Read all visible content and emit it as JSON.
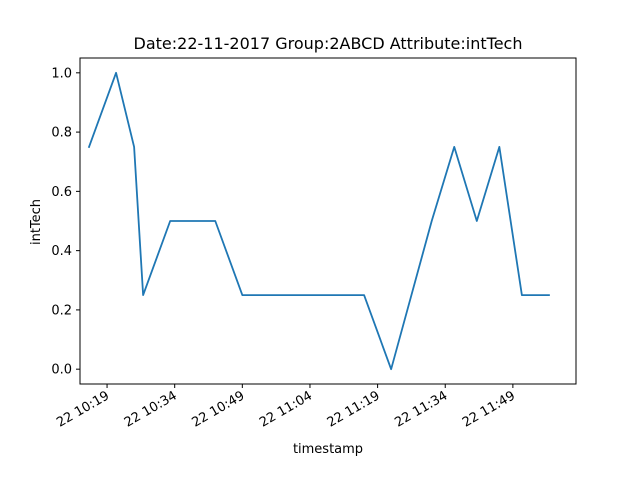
{
  "chart_data": {
    "type": "line",
    "title": "Date:22-11-2017  Group:2ABCD Attribute:intTech",
    "xlabel": "timestamp",
    "ylabel": "intTech",
    "xlim": [
      "2017-11-22 10:13",
      "2017-11-22 12:03"
    ],
    "ylim": [
      -0.05,
      1.05
    ],
    "x_ticks": [
      {
        "t": "2017-11-22 10:19",
        "label": "22 10:19"
      },
      {
        "t": "2017-11-22 10:34",
        "label": "22 10:34"
      },
      {
        "t": "2017-11-22 10:49",
        "label": "22 10:49"
      },
      {
        "t": "2017-11-22 11:04",
        "label": "22 11:04"
      },
      {
        "t": "2017-11-22 11:19",
        "label": "22 11:19"
      },
      {
        "t": "2017-11-22 11:34",
        "label": "22 11:34"
      },
      {
        "t": "2017-11-22 11:49",
        "label": "22 11:49"
      }
    ],
    "y_ticks": [
      {
        "v": 0.0,
        "label": "0.0"
      },
      {
        "v": 0.2,
        "label": "0.2"
      },
      {
        "v": 0.4,
        "label": "0.4"
      },
      {
        "v": 0.6,
        "label": "0.6"
      },
      {
        "v": 0.8,
        "label": "0.8"
      },
      {
        "v": 1.0,
        "label": "1.0"
      }
    ],
    "grid": false,
    "line_color": "#1f77b4",
    "series": [
      {
        "x": [
          "2017-11-22 10:15",
          "2017-11-22 10:21",
          "2017-11-22 10:25",
          "2017-11-22 10:27",
          "2017-11-22 10:33",
          "2017-11-22 10:43",
          "2017-11-22 10:49",
          "2017-11-22 11:09",
          "2017-11-22 11:16",
          "2017-11-22 11:22",
          "2017-11-22 11:31",
          "2017-11-22 11:36",
          "2017-11-22 11:41",
          "2017-11-22 11:46",
          "2017-11-22 11:51",
          "2017-11-22 11:57"
        ],
        "y": [
          0.75,
          1.0,
          0.75,
          0.25,
          0.5,
          0.5,
          0.25,
          0.25,
          0.25,
          0.0,
          0.5,
          0.75,
          0.5,
          0.75,
          0.25,
          0.25
        ]
      }
    ]
  }
}
